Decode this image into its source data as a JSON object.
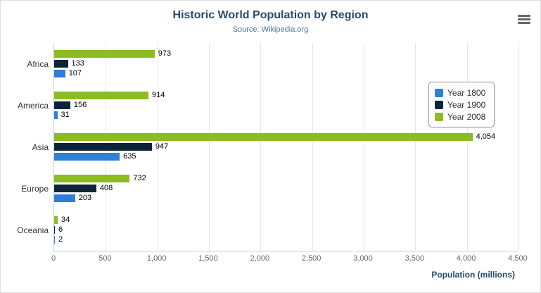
{
  "chart_data": {
    "type": "bar",
    "orientation": "horizontal",
    "title": "Historic World Population by Region",
    "subtitle": "Source: Wikipedia.org",
    "xlabel": "Population (millions)",
    "categories": [
      "Africa",
      "America",
      "Asia",
      "Europe",
      "Oceania"
    ],
    "series": [
      {
        "name": "Year 1800",
        "color": "#2f7ed8",
        "values": [
          107,
          31,
          635,
          203,
          2
        ]
      },
      {
        "name": "Year 1900",
        "color": "#0d233a",
        "values": [
          133,
          156,
          947,
          408,
          6
        ]
      },
      {
        "name": "Year 2008",
        "color": "#8bbc21",
        "values": [
          973,
          914,
          4054,
          732,
          34
        ]
      }
    ],
    "xlim": [
      0,
      4500
    ],
    "tick_interval": 500,
    "tick_labels": [
      "0",
      "500",
      "1,000",
      "1,500",
      "2,000",
      "2,500",
      "3,000",
      "3,500",
      "4,000",
      "4,500"
    ],
    "grid": true,
    "legend_position": "right",
    "bar_display_order_in_group_top_to_bottom": [
      "Year 2008",
      "Year 1900",
      "Year 1800"
    ]
  },
  "icons": {
    "menu": "hamburger-menu"
  }
}
